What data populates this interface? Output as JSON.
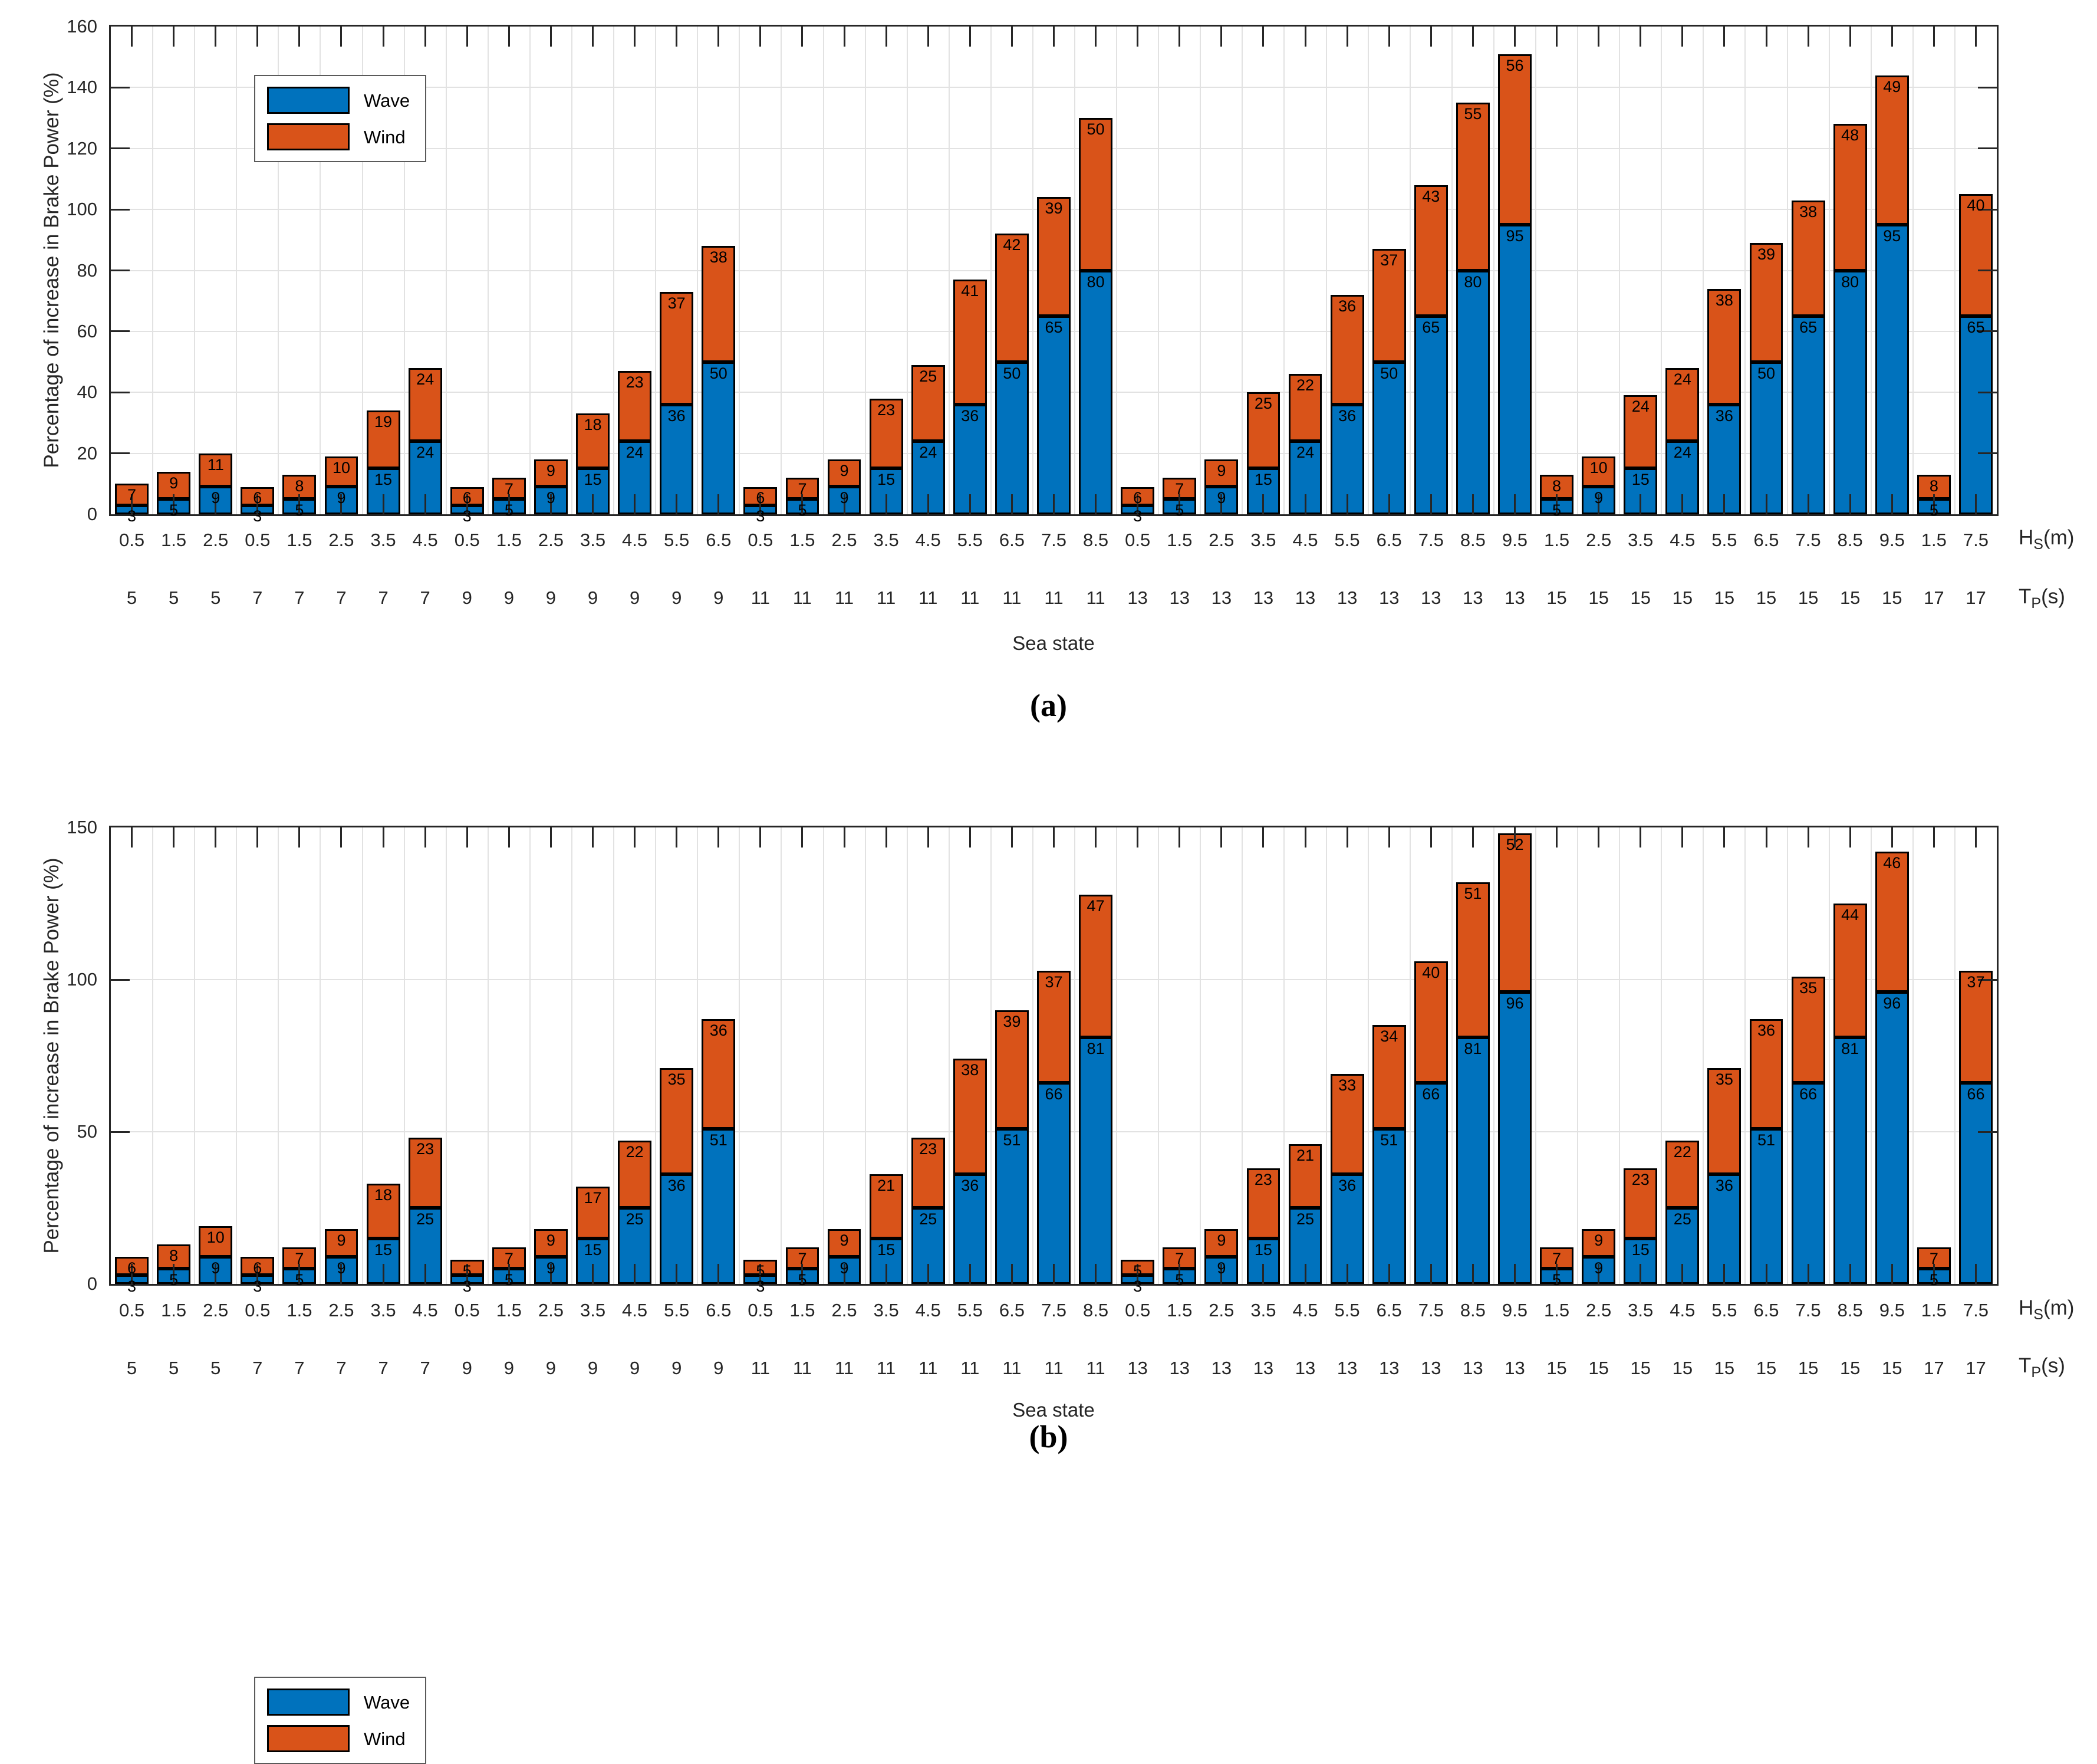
{
  "colors": {
    "wave": "#0072BD",
    "wind": "#D95319",
    "grid": "#e2e2e2",
    "axis": "#262626",
    "value_label": "#000000"
  },
  "chart_data": [
    {
      "type": "bar",
      "stacked": true,
      "caption": "(a)",
      "ylabel": "Percentage of increase in Brake Power (%)",
      "xlabel": "Sea state",
      "hs_name": {
        "base": "H",
        "sub": "S",
        "suffix": "(m)"
      },
      "tp_name": {
        "base": "T",
        "sub": "P",
        "suffix": "(s)"
      },
      "legend": [
        "Wave",
        "Wind"
      ],
      "legend_position": "top-left",
      "grid": true,
      "ylim": [
        0,
        160
      ],
      "yticks": [
        0,
        20,
        40,
        60,
        80,
        100,
        120,
        140,
        160
      ],
      "categories_hs": [
        "0.5",
        "1.5",
        "2.5",
        "0.5",
        "1.5",
        "2.5",
        "3.5",
        "4.5",
        "0.5",
        "1.5",
        "2.5",
        "3.5",
        "4.5",
        "5.5",
        "6.5",
        "0.5",
        "1.5",
        "2.5",
        "3.5",
        "4.5",
        "5.5",
        "6.5",
        "7.5",
        "8.5",
        "0.5",
        "1.5",
        "2.5",
        "3.5",
        "4.5",
        "5.5",
        "6.5",
        "7.5",
        "8.5",
        "9.5",
        "1.5",
        "2.5",
        "3.5",
        "4.5",
        "5.5",
        "6.5",
        "7.5",
        "8.5",
        "9.5",
        "1.5",
        "7.5"
      ],
      "categories_tp": [
        "5",
        "5",
        "5",
        "7",
        "7",
        "7",
        "7",
        "7",
        "9",
        "9",
        "9",
        "9",
        "9",
        "9",
        "9",
        "11",
        "11",
        "11",
        "11",
        "11",
        "11",
        "11",
        "11",
        "11",
        "13",
        "13",
        "13",
        "13",
        "13",
        "13",
        "13",
        "13",
        "13",
        "13",
        "15",
        "15",
        "15",
        "15",
        "15",
        "15",
        "15",
        "15",
        "15",
        "17",
        "17"
      ],
      "series": [
        {
          "name": "Wave",
          "values": [
            3,
            5,
            9,
            3,
            5,
            9,
            15,
            24,
            3,
            5,
            9,
            15,
            24,
            36,
            50,
            3,
            5,
            9,
            15,
            24,
            36,
            50,
            65,
            80,
            3,
            5,
            9,
            15,
            24,
            36,
            50,
            65,
            80,
            95,
            5,
            9,
            15,
            24,
            36,
            50,
            65,
            80,
            95,
            5,
            65
          ]
        },
        {
          "name": "Wind",
          "values": [
            7,
            9,
            11,
            6,
            8,
            10,
            19,
            24,
            6,
            7,
            9,
            18,
            23,
            37,
            38,
            6,
            7,
            9,
            23,
            25,
            41,
            42,
            39,
            50,
            6,
            7,
            9,
            25,
            22,
            36,
            37,
            43,
            55,
            56,
            8,
            10,
            24,
            24,
            38,
            39,
            38,
            48,
            49,
            8,
            40
          ]
        }
      ]
    },
    {
      "type": "bar",
      "stacked": true,
      "caption": "(b)",
      "ylabel": "Percentage of increase in Brake Power (%)",
      "xlabel": "Sea state",
      "hs_name": {
        "base": "H",
        "sub": "S",
        "suffix": "(m)"
      },
      "tp_name": {
        "base": "T",
        "sub": "P",
        "suffix": "(s)"
      },
      "legend": [
        "Wave",
        "Wind"
      ],
      "legend_position": "top-left",
      "grid": true,
      "ylim": [
        0,
        150
      ],
      "yticks": [
        0,
        50,
        100,
        150
      ],
      "categories_hs": [
        "0.5",
        "1.5",
        "2.5",
        "0.5",
        "1.5",
        "2.5",
        "3.5",
        "4.5",
        "0.5",
        "1.5",
        "2.5",
        "3.5",
        "4.5",
        "5.5",
        "6.5",
        "0.5",
        "1.5",
        "2.5",
        "3.5",
        "4.5",
        "5.5",
        "6.5",
        "7.5",
        "8.5",
        "0.5",
        "1.5",
        "2.5",
        "3.5",
        "4.5",
        "5.5",
        "6.5",
        "7.5",
        "8.5",
        "9.5",
        "1.5",
        "2.5",
        "3.5",
        "4.5",
        "5.5",
        "6.5",
        "7.5",
        "8.5",
        "9.5",
        "1.5",
        "7.5"
      ],
      "categories_tp": [
        "5",
        "5",
        "5",
        "7",
        "7",
        "7",
        "7",
        "7",
        "9",
        "9",
        "9",
        "9",
        "9",
        "9",
        "9",
        "11",
        "11",
        "11",
        "11",
        "11",
        "11",
        "11",
        "11",
        "11",
        "13",
        "13",
        "13",
        "13",
        "13",
        "13",
        "13",
        "13",
        "13",
        "13",
        "15",
        "15",
        "15",
        "15",
        "15",
        "15",
        "15",
        "15",
        "15",
        "17",
        "17"
      ],
      "series": [
        {
          "name": "Wave",
          "values": [
            3,
            5,
            9,
            3,
            5,
            9,
            15,
            25,
            3,
            5,
            9,
            15,
            25,
            36,
            51,
            3,
            5,
            9,
            15,
            25,
            36,
            51,
            66,
            81,
            3,
            5,
            9,
            15,
            25,
            36,
            51,
            66,
            81,
            96,
            5,
            9,
            15,
            25,
            36,
            51,
            66,
            81,
            96,
            5,
            66
          ]
        },
        {
          "name": "Wind",
          "values": [
            6,
            8,
            10,
            6,
            7,
            9,
            18,
            23,
            5,
            7,
            9,
            17,
            22,
            35,
            36,
            5,
            7,
            9,
            21,
            23,
            38,
            39,
            37,
            47,
            5,
            7,
            9,
            23,
            21,
            33,
            34,
            40,
            51,
            52,
            7,
            9,
            23,
            22,
            35,
            36,
            35,
            44,
            46,
            7,
            37
          ]
        }
      ]
    }
  ]
}
